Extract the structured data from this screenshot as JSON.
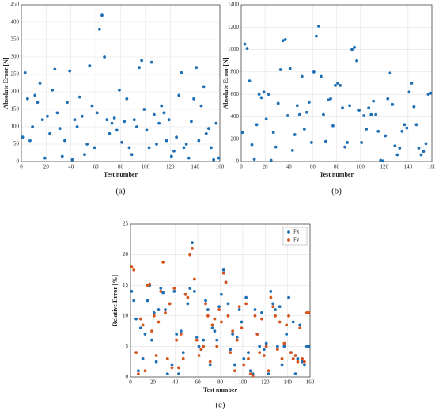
{
  "chart_data": [
    {
      "type": "scatter",
      "caption": "(a)",
      "xlabel": "Test number",
      "ylabel": "Absolute Error [N]",
      "color": "#1f6fb5",
      "grid": true,
      "xlim": [
        0,
        160
      ],
      "xticks": [
        0,
        20,
        40,
        60,
        80,
        100,
        120,
        140,
        160
      ],
      "ylim": [
        0,
        450
      ],
      "yticks": [
        0,
        50,
        100,
        150,
        200,
        250,
        300,
        350,
        400,
        450
      ],
      "x": [
        1,
        3,
        5,
        7,
        9,
        11,
        13,
        15,
        17,
        19,
        21,
        23,
        25,
        27,
        29,
        31,
        33,
        35,
        37,
        39,
        41,
        43,
        45,
        47,
        49,
        51,
        53,
        55,
        57,
        59,
        61,
        63,
        65,
        67,
        69,
        71,
        73,
        75,
        77,
        79,
        81,
        83,
        85,
        87,
        89,
        91,
        93,
        95,
        97,
        99,
        101,
        103,
        105,
        107,
        109,
        111,
        113,
        115,
        117,
        119,
        121,
        123,
        125,
        127,
        129,
        131,
        133,
        135,
        137,
        139,
        141,
        143,
        145,
        147,
        149,
        151,
        153,
        155,
        157,
        159
      ],
      "values": [
        70,
        255,
        180,
        60,
        100,
        190,
        170,
        225,
        120,
        10,
        130,
        80,
        205,
        265,
        140,
        95,
        15,
        60,
        170,
        260,
        5,
        120,
        100,
        185,
        130,
        20,
        50,
        275,
        160,
        40,
        140,
        380,
        420,
        300,
        120,
        80,
        110,
        125,
        90,
        205,
        55,
        115,
        180,
        40,
        20,
        120,
        100,
        270,
        290,
        150,
        90,
        40,
        285,
        135,
        50,
        110,
        160,
        140,
        60,
        120,
        15,
        30,
        70,
        190,
        255,
        40,
        50,
        10,
        115,
        180,
        270,
        60,
        160,
        215,
        80,
        95,
        40,
        5,
        110,
        10
      ]
    },
    {
      "type": "scatter",
      "caption": "(b)",
      "xlabel": "Test number",
      "ylabel": "Absolute Error [N]",
      "color": "#1f6fb5",
      "grid": true,
      "xlim": [
        0,
        160
      ],
      "xticks": [
        0,
        20,
        40,
        60,
        80,
        100,
        120,
        140,
        160
      ],
      "ylim": [
        0,
        1400
      ],
      "yticks": [
        0,
        200,
        400,
        600,
        800,
        1000,
        1200,
        1400
      ],
      "x": [
        1,
        3,
        5,
        7,
        9,
        11,
        13,
        15,
        17,
        19,
        21,
        23,
        25,
        27,
        29,
        31,
        33,
        35,
        37,
        39,
        41,
        43,
        45,
        47,
        49,
        51,
        53,
        55,
        57,
        59,
        61,
        63,
        65,
        67,
        69,
        71,
        73,
        75,
        77,
        79,
        81,
        83,
        85,
        87,
        89,
        91,
        93,
        95,
        97,
        99,
        101,
        103,
        105,
        107,
        109,
        111,
        113,
        115,
        117,
        119,
        121,
        123,
        125,
        127,
        129,
        131,
        133,
        135,
        137,
        139,
        141,
        143,
        145,
        147,
        149,
        151,
        153,
        155,
        157,
        159
      ],
      "values": [
        260,
        1050,
        1010,
        720,
        150,
        20,
        330,
        600,
        570,
        620,
        380,
        600,
        10,
        260,
        130,
        520,
        820,
        1080,
        1090,
        410,
        830,
        100,
        240,
        500,
        420,
        760,
        290,
        440,
        530,
        170,
        800,
        1120,
        1210,
        760,
        420,
        180,
        550,
        560,
        320,
        680,
        700,
        680,
        480,
        130,
        170,
        500,
        1000,
        1020,
        900,
        460,
        170,
        410,
        290,
        480,
        420,
        540,
        420,
        270,
        10,
        5,
        230,
        560,
        790,
        510,
        140,
        60,
        120,
        270,
        330,
        300,
        620,
        700,
        490,
        330,
        120,
        60,
        90,
        160,
        600,
        610
      ]
    },
    {
      "type": "scatter",
      "caption": "(c)",
      "xlabel": "Test number",
      "ylabel": "Relative Error [%]",
      "grid": true,
      "legend": "upper right",
      "xlim": [
        0,
        160
      ],
      "xticks": [
        0,
        20,
        40,
        60,
        80,
        100,
        120,
        140,
        160
      ],
      "ylim": [
        0,
        25
      ],
      "yticks": [
        0,
        5,
        10,
        15,
        20,
        25
      ],
      "x": [
        1,
        3,
        5,
        7,
        9,
        11,
        13,
        15,
        17,
        19,
        21,
        23,
        25,
        27,
        29,
        31,
        33,
        35,
        37,
        39,
        41,
        43,
        45,
        47,
        49,
        51,
        53,
        55,
        57,
        59,
        61,
        63,
        65,
        67,
        69,
        71,
        73,
        75,
        77,
        79,
        81,
        83,
        85,
        87,
        89,
        91,
        93,
        95,
        97,
        99,
        101,
        103,
        105,
        107,
        109,
        111,
        113,
        115,
        117,
        119,
        121,
        123,
        125,
        127,
        129,
        131,
        133,
        135,
        137,
        139,
        141,
        143,
        145,
        147,
        149,
        151,
        153,
        155,
        157,
        159
      ],
      "series": [
        {
          "name": "Fx",
          "color": "#1f6fb5",
          "values": [
            14,
            12.5,
            9.5,
            1,
            8,
            3,
            7,
            12.5,
            15,
            6,
            10.5,
            2.5,
            11,
            14.5,
            13.8,
            11,
            0.5,
            12,
            2,
            14,
            7,
            0.5,
            7.5,
            4,
            13.5,
            12,
            14.5,
            22,
            14,
            6.5,
            5,
            4.5,
            6,
            12.5,
            11,
            2,
            8,
            7.5,
            6,
            11.5,
            13.5,
            17.5,
            15.5,
            12,
            4.5,
            7,
            2,
            6.5,
            11,
            9,
            3,
            13,
            4,
            1,
            0.5,
            11,
            7,
            5,
            10.5,
            4.5,
            5.5,
            0.5,
            14,
            12,
            11,
            5,
            11.5,
            2,
            5,
            7,
            13,
            4,
            9,
            0.5,
            3,
            8.5,
            2.5,
            2,
            5,
            5
          ]
        },
        {
          "name": "Fy",
          "color": "#d4541c",
          "values": [
            18,
            17.5,
            4,
            0.5,
            9.5,
            8.5,
            1,
            15,
            15.2,
            7.5,
            10,
            3.5,
            9,
            14,
            18.8,
            10.5,
            3,
            12,
            1.5,
            14.5,
            6,
            1.5,
            7,
            3,
            13.5,
            13,
            20,
            21,
            16,
            6,
            3.5,
            4.5,
            5,
            12,
            10,
            2.5,
            8.5,
            9.5,
            5,
            11,
            9,
            17,
            15.5,
            10,
            4,
            7.5,
            1,
            6,
            11.5,
            8,
            2,
            12,
            3,
            0.5,
            0.2,
            10,
            7,
            4,
            9.5,
            3.5,
            5,
            1,
            13,
            11.5,
            10,
            4.5,
            9,
            3,
            5.5,
            8.5,
            10,
            4,
            3,
            3.5,
            2.5,
            8,
            3,
            2.5,
            10.5,
            10.5
          ]
        }
      ]
    }
  ]
}
